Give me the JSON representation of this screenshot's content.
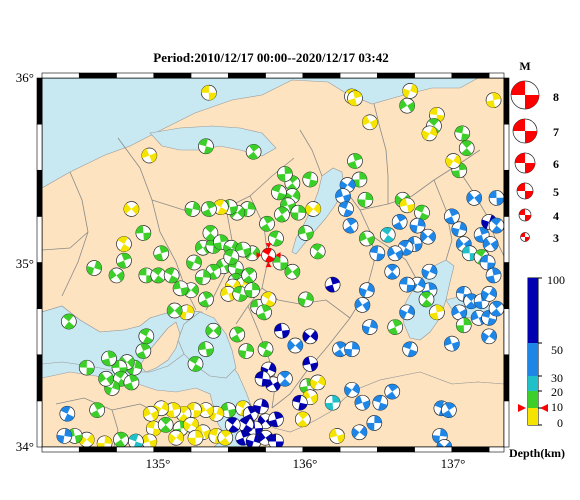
{
  "title": "Period:2010/12/17 00:00--2020/12/17 03:42",
  "axes": {
    "lat_labels": [
      "36°",
      "35°",
      "34°"
    ],
    "lon_labels": [
      "135°",
      "136°",
      "137°"
    ]
  },
  "magnitude_legend": {
    "heading": "M",
    "items": [
      "8",
      "7",
      "6",
      "5",
      "4",
      "3"
    ]
  },
  "depth_scale": {
    "axis_label": "Depth(km)",
    "tick_labels": [
      "100",
      "50",
      "30",
      "20",
      "10",
      "0"
    ],
    "marker_depth_km": 10
  },
  "colors": {
    "sea": "#c8e8f2",
    "land": "#fde3bf",
    "border": "#8a8a8a",
    "depth_0_10": "#f4e400",
    "depth_10_20": "#3ccf2a",
    "depth_20_30": "#20c0c8",
    "depth_30_50": "#1e86e6",
    "depth_50_100": "#0000b0",
    "highlight_event": "#ff0000"
  },
  "highlight_event": {
    "lon": 135.77,
    "lat": 35.04,
    "mag": 4.6,
    "color": "#ff0000"
  },
  "events": [
    {
      "lon": 135.37,
      "lat": 35.92,
      "c": "#f4e400"
    },
    {
      "lon": 136.33,
      "lat": 35.9,
      "c": "#f4e400"
    },
    {
      "lon": 136.35,
      "lat": 35.89,
      "c": "#f4e400"
    },
    {
      "lon": 136.72,
      "lat": 35.93,
      "c": "#f4e400"
    },
    {
      "lon": 136.7,
      "lat": 35.85,
      "c": "#3ccf2a"
    },
    {
      "lon": 136.9,
      "lat": 35.8,
      "c": "#f4e400"
    },
    {
      "lon": 136.88,
      "lat": 35.74,
      "c": "#3ccf2a"
    },
    {
      "lon": 137.28,
      "lat": 35.88,
      "c": "#f4e400"
    },
    {
      "lon": 136.85,
      "lat": 35.7,
      "c": "#f4e400"
    },
    {
      "lon": 136.45,
      "lat": 35.76,
      "c": "#f4e400"
    },
    {
      "lon": 137.07,
      "lat": 35.7,
      "c": "#3ccf2a"
    },
    {
      "lon": 137.1,
      "lat": 35.62,
      "c": "#3ccf2a"
    },
    {
      "lon": 137.05,
      "lat": 35.5,
      "c": "#3ccf2a"
    },
    {
      "lon": 137.01,
      "lat": 35.55,
      "c": "#f4e400"
    },
    {
      "lon": 134.97,
      "lat": 35.58,
      "c": "#f4e400"
    },
    {
      "lon": 135.35,
      "lat": 35.63,
      "c": "#3ccf2a"
    },
    {
      "lon": 135.67,
      "lat": 35.6,
      "c": "#3ccf2a"
    },
    {
      "lon": 136.38,
      "lat": 35.45,
      "c": "#3ccf2a"
    },
    {
      "lon": 136.3,
      "lat": 35.42,
      "c": "#1e86e6"
    },
    {
      "lon": 136.27,
      "lat": 35.36,
      "c": "#1e86e6"
    },
    {
      "lon": 136.29,
      "lat": 35.29,
      "c": "#1e86e6"
    },
    {
      "lon": 136.32,
      "lat": 35.2,
      "c": "#1e86e6"
    },
    {
      "lon": 136.42,
      "lat": 35.34,
      "c": "#3ccf2a"
    },
    {
      "lon": 136.67,
      "lat": 35.34,
      "c": "#3ccf2a"
    },
    {
      "lon": 136.7,
      "lat": 35.31,
      "c": "#f4e400"
    },
    {
      "lon": 136.8,
      "lat": 35.27,
      "c": "#3ccf2a"
    },
    {
      "lon": 136.65,
      "lat": 35.22,
      "c": "#1e86e6"
    },
    {
      "lon": 136.77,
      "lat": 35.2,
      "c": "#1e86e6"
    },
    {
      "lon": 136.84,
      "lat": 35.14,
      "c": "#1e86e6"
    },
    {
      "lon": 136.75,
      "lat": 35.1,
      "c": "#1e86e6"
    },
    {
      "lon": 136.69,
      "lat": 35.08,
      "c": "#1e86e6"
    },
    {
      "lon": 137.0,
      "lat": 35.25,
      "c": "#1e86e6"
    },
    {
      "lon": 137.05,
      "lat": 35.18,
      "c": "#1e86e6"
    },
    {
      "lon": 137.08,
      "lat": 35.1,
      "c": "#1e86e6"
    },
    {
      "lon": 137.12,
      "lat": 35.05,
      "c": "#20c0c8"
    },
    {
      "lon": 137.2,
      "lat": 35.03,
      "c": "#3ccf2a"
    },
    {
      "lon": 137.2,
      "lat": 35.15,
      "c": "#1e86e6"
    },
    {
      "lon": 137.25,
      "lat": 35.22,
      "c": "#0000b0"
    },
    {
      "lon": 137.26,
      "lat": 35.1,
      "c": "#1e86e6"
    },
    {
      "lon": 137.24,
      "lat": 35.0,
      "c": "#1e86e6"
    },
    {
      "lon": 137.3,
      "lat": 35.2,
      "c": "#1e86e6"
    },
    {
      "lon": 137.28,
      "lat": 34.93,
      "c": "#1e86e6"
    },
    {
      "lon": 136.85,
      "lat": 34.95,
      "c": "#1e86e6"
    },
    {
      "lon": 136.62,
      "lat": 35.05,
      "c": "#1e86e6"
    },
    {
      "lon": 136.5,
      "lat": 35.05,
      "c": "#1e86e6"
    },
    {
      "lon": 136.6,
      "lat": 34.95,
      "c": "#1e86e6"
    },
    {
      "lon": 136.85,
      "lat": 34.85,
      "c": "#1e86e6"
    },
    {
      "lon": 136.77,
      "lat": 34.88,
      "c": "#1e86e6"
    },
    {
      "lon": 136.43,
      "lat": 35.13,
      "c": "#3ccf2a"
    },
    {
      "lon": 136.05,
      "lat": 35.45,
      "c": "#3ccf2a"
    },
    {
      "lon": 135.93,
      "lat": 35.43,
      "c": "#3ccf2a"
    },
    {
      "lon": 135.88,
      "lat": 35.48,
      "c": "#3ccf2a"
    },
    {
      "lon": 135.93,
      "lat": 35.36,
      "c": "#3ccf2a"
    },
    {
      "lon": 135.9,
      "lat": 35.31,
      "c": "#3ccf2a"
    },
    {
      "lon": 135.84,
      "lat": 35.38,
      "c": "#3ccf2a"
    },
    {
      "lon": 135.86,
      "lat": 35.26,
      "c": "#3ccf2a"
    },
    {
      "lon": 135.97,
      "lat": 35.27,
      "c": "#3ccf2a"
    },
    {
      "lon": 136.07,
      "lat": 35.29,
      "c": "#f4e400"
    },
    {
      "lon": 136.02,
      "lat": 35.16,
      "c": "#3ccf2a"
    },
    {
      "lon": 135.82,
      "lat": 35.13,
      "c": "#3ccf2a"
    },
    {
      "lon": 135.76,
      "lat": 35.21,
      "c": "#3ccf2a"
    },
    {
      "lon": 135.63,
      "lat": 35.29,
      "c": "#3ccf2a"
    },
    {
      "lon": 135.56,
      "lat": 35.27,
      "c": "#3ccf2a"
    },
    {
      "lon": 135.51,
      "lat": 35.3,
      "c": "#3ccf2a"
    },
    {
      "lon": 135.45,
      "lat": 35.3,
      "c": "#f4e400"
    },
    {
      "lon": 135.37,
      "lat": 35.29,
      "c": "#3ccf2a"
    },
    {
      "lon": 135.26,
      "lat": 35.29,
      "c": "#3ccf2a"
    },
    {
      "lon": 134.85,
      "lat": 35.29,
      "c": "#f4e400"
    },
    {
      "lon": 134.93,
      "lat": 35.16,
      "c": "#3ccf2a"
    },
    {
      "lon": 134.8,
      "lat": 35.1,
      "c": "#f4e400"
    },
    {
      "lon": 134.8,
      "lat": 35.01,
      "c": "#3ccf2a"
    },
    {
      "lon": 134.6,
      "lat": 34.97,
      "c": "#3ccf2a"
    },
    {
      "lon": 134.75,
      "lat": 34.93,
      "c": "#3ccf2a"
    },
    {
      "lon": 134.95,
      "lat": 34.93,
      "c": "#3ccf2a"
    },
    {
      "lon": 135.03,
      "lat": 34.93,
      "c": "#3ccf2a"
    },
    {
      "lon": 135.05,
      "lat": 35.05,
      "c": "#3ccf2a"
    },
    {
      "lon": 135.27,
      "lat": 35.0,
      "c": "#3ccf2a"
    },
    {
      "lon": 135.33,
      "lat": 35.08,
      "c": "#3ccf2a"
    },
    {
      "lon": 135.4,
      "lat": 35.09,
      "c": "#3ccf2a"
    },
    {
      "lon": 135.38,
      "lat": 35.16,
      "c": "#3ccf2a"
    },
    {
      "lon": 135.45,
      "lat": 35.11,
      "c": "#3ccf2a"
    },
    {
      "lon": 135.52,
      "lat": 35.08,
      "c": "#3ccf2a"
    },
    {
      "lon": 135.47,
      "lat": 34.98,
      "c": "#3ccf2a"
    },
    {
      "lon": 135.55,
      "lat": 34.97,
      "c": "#3ccf2a"
    },
    {
      "lon": 135.55,
      "lat": 34.9,
      "c": "#3ccf2a"
    },
    {
      "lon": 135.6,
      "lat": 34.88,
      "c": "#f4e400"
    },
    {
      "lon": 135.53,
      "lat": 34.87,
      "c": "#f4e400"
    },
    {
      "lon": 135.5,
      "lat": 34.83,
      "c": "#f4e400"
    },
    {
      "lon": 135.58,
      "lat": 34.83,
      "c": "#3ccf2a"
    },
    {
      "lon": 135.64,
      "lat": 34.93,
      "c": "#3ccf2a"
    },
    {
      "lon": 135.66,
      "lat": 34.85,
      "c": "#3ccf2a"
    },
    {
      "lon": 135.66,
      "lat": 35.05,
      "c": "#3ccf2a"
    },
    {
      "lon": 135.6,
      "lat": 35.07,
      "c": "#3ccf2a"
    },
    {
      "lon": 135.52,
      "lat": 35.03,
      "c": "#3ccf2a"
    },
    {
      "lon": 135.4,
      "lat": 34.95,
      "c": "#3ccf2a"
    },
    {
      "lon": 135.33,
      "lat": 34.92,
      "c": "#3ccf2a"
    },
    {
      "lon": 135.25,
      "lat": 34.85,
      "c": "#3ccf2a"
    },
    {
      "lon": 135.18,
      "lat": 34.86,
      "c": "#3ccf2a"
    },
    {
      "lon": 135.12,
      "lat": 34.93,
      "c": "#3ccf2a"
    },
    {
      "lon": 135.35,
      "lat": 34.8,
      "c": "#3ccf2a"
    },
    {
      "lon": 135.22,
      "lat": 34.73,
      "c": "#f4e400"
    },
    {
      "lon": 135.14,
      "lat": 34.74,
      "c": "#3ccf2a"
    },
    {
      "lon": 135.7,
      "lat": 34.76,
      "c": "#3ccf2a"
    },
    {
      "lon": 135.77,
      "lat": 34.8,
      "c": "#f4e400"
    },
    {
      "lon": 135.74,
      "lat": 34.73,
      "c": "#3ccf2a"
    },
    {
      "lon": 136.02,
      "lat": 34.8,
      "c": "#3ccf2a"
    },
    {
      "lon": 135.93,
      "lat": 34.95,
      "c": "#3ccf2a"
    },
    {
      "lon": 135.85,
      "lat": 35.0,
      "c": "#3ccf2a"
    },
    {
      "lon": 136.1,
      "lat": 35.06,
      "c": "#3ccf2a"
    },
    {
      "lon": 136.2,
      "lat": 34.88,
      "c": "#0000b0"
    },
    {
      "lon": 136.43,
      "lat": 34.85,
      "c": "#1e86e6"
    },
    {
      "lon": 136.4,
      "lat": 34.77,
      "c": "#1e86e6"
    },
    {
      "lon": 136.7,
      "lat": 34.88,
      "c": "#1e86e6"
    },
    {
      "lon": 136.83,
      "lat": 34.8,
      "c": "#3ccf2a"
    },
    {
      "lon": 136.9,
      "lat": 34.73,
      "c": "#f4e400"
    },
    {
      "lon": 136.7,
      "lat": 34.73,
      "c": "#1e86e6"
    },
    {
      "lon": 137.05,
      "lat": 34.73,
      "c": "#1e86e6"
    },
    {
      "lon": 137.08,
      "lat": 34.83,
      "c": "#1e86e6"
    },
    {
      "lon": 137.13,
      "lat": 34.79,
      "c": "#1e86e6"
    },
    {
      "lon": 137.2,
      "lat": 34.79,
      "c": "#1e86e6"
    },
    {
      "lon": 137.25,
      "lat": 34.83,
      "c": "#1e86e6"
    },
    {
      "lon": 137.18,
      "lat": 34.7,
      "c": "#1e86e6"
    },
    {
      "lon": 137.25,
      "lat": 34.7,
      "c": "#1e86e6"
    },
    {
      "lon": 137.3,
      "lat": 34.75,
      "c": "#1e86e6"
    },
    {
      "lon": 137.08,
      "lat": 34.66,
      "c": "#3ccf2a"
    },
    {
      "lon": 137.25,
      "lat": 34.6,
      "c": "#1e86e6"
    },
    {
      "lon": 137.0,
      "lat": 34.56,
      "c": "#1e86e6"
    },
    {
      "lon": 136.72,
      "lat": 34.53,
      "c": "#1e86e6"
    },
    {
      "lon": 136.25,
      "lat": 34.53,
      "c": "#1e86e6"
    },
    {
      "lon": 136.33,
      "lat": 34.53,
      "c": "#1e86e6"
    },
    {
      "lon": 136.05,
      "lat": 34.6,
      "c": "#0000b0"
    },
    {
      "lon": 136.05,
      "lat": 34.45,
      "c": "#0000b0"
    },
    {
      "lon": 135.75,
      "lat": 34.53,
      "c": "#3ccf2a"
    },
    {
      "lon": 135.56,
      "lat": 34.61,
      "c": "#3ccf2a"
    },
    {
      "lon": 135.62,
      "lat": 34.52,
      "c": "#3ccf2a"
    },
    {
      "lon": 135.4,
      "lat": 34.63,
      "c": "#3ccf2a"
    },
    {
      "lon": 135.35,
      "lat": 34.53,
      "c": "#3ccf2a"
    },
    {
      "lon": 134.95,
      "lat": 34.6,
      "c": "#3ccf2a"
    },
    {
      "lon": 134.93,
      "lat": 34.52,
      "c": "#3ccf2a"
    },
    {
      "lon": 134.87,
      "lat": 34.43,
      "c": "#3ccf2a"
    },
    {
      "lon": 134.82,
      "lat": 34.46,
      "c": "#3ccf2a"
    },
    {
      "lon": 134.77,
      "lat": 34.43,
      "c": "#3ccf2a"
    },
    {
      "lon": 134.78,
      "lat": 34.37,
      "c": "#3ccf2a"
    },
    {
      "lon": 134.85,
      "lat": 34.35,
      "c": "#3ccf2a"
    },
    {
      "lon": 134.72,
      "lat": 34.32,
      "c": "#3ccf2a"
    },
    {
      "lon": 134.68,
      "lat": 34.37,
      "c": "#3ccf2a"
    },
    {
      "lon": 134.55,
      "lat": 34.43,
      "c": "#3ccf2a"
    },
    {
      "lon": 134.43,
      "lat": 34.68,
      "c": "#3ccf2a"
    },
    {
      "lon": 134.7,
      "lat": 34.48,
      "c": "#3ccf2a"
    },
    {
      "lon": 135.77,
      "lat": 34.42,
      "c": "#0000b0"
    },
    {
      "lon": 135.8,
      "lat": 34.34,
      "c": "#0000b0"
    },
    {
      "lon": 135.73,
      "lat": 34.37,
      "c": "#0000b0"
    },
    {
      "lon": 135.88,
      "lat": 34.37,
      "c": "#1e86e6"
    },
    {
      "lon": 136.03,
      "lat": 34.33,
      "c": "#3ccf2a"
    },
    {
      "lon": 136.1,
      "lat": 34.35,
      "c": "#f4e400"
    },
    {
      "lon": 136.05,
      "lat": 34.27,
      "c": "#f4e400"
    },
    {
      "lon": 135.98,
      "lat": 34.24,
      "c": "#0000b0"
    },
    {
      "lon": 136.0,
      "lat": 34.15,
      "c": "#f4e400"
    },
    {
      "lon": 136.2,
      "lat": 34.24,
      "c": "#20c0c8"
    },
    {
      "lon": 136.33,
      "lat": 34.31,
      "c": "#1e86e6"
    },
    {
      "lon": 136.4,
      "lat": 34.24,
      "c": "#1e86e6"
    },
    {
      "lon": 136.52,
      "lat": 34.24,
      "c": "#1e86e6"
    },
    {
      "lon": 136.6,
      "lat": 34.3,
      "c": "#1e86e6"
    },
    {
      "lon": 136.48,
      "lat": 34.13,
      "c": "#1e86e6"
    },
    {
      "lon": 136.38,
      "lat": 34.08,
      "c": "#1e86e6"
    },
    {
      "lon": 136.23,
      "lat": 34.06,
      "c": "#f4e400"
    },
    {
      "lon": 136.93,
      "lat": 34.21,
      "c": "#1e86e6"
    },
    {
      "lon": 136.98,
      "lat": 34.2,
      "c": "#1e86e6"
    },
    {
      "lon": 136.92,
      "lat": 34.06,
      "c": "#1e86e6"
    },
    {
      "lon": 136.95,
      "lat": 34.0,
      "c": "#1e86e6"
    },
    {
      "lon": 135.5,
      "lat": 34.2,
      "c": "#3ccf2a"
    },
    {
      "lon": 135.6,
      "lat": 34.21,
      "c": "#f4e400"
    },
    {
      "lon": 135.65,
      "lat": 34.18,
      "c": "#0000b0"
    },
    {
      "lon": 135.72,
      "lat": 34.22,
      "c": "#0000b0"
    },
    {
      "lon": 135.75,
      "lat": 34.14,
      "c": "#0000b0"
    },
    {
      "lon": 135.68,
      "lat": 34.1,
      "c": "#0000b0"
    },
    {
      "lon": 135.62,
      "lat": 34.12,
      "c": "#0000b0"
    },
    {
      "lon": 135.6,
      "lat": 34.05,
      "c": "#0000b0"
    },
    {
      "lon": 135.67,
      "lat": 34.03,
      "c": "#0000b0"
    },
    {
      "lon": 135.75,
      "lat": 34.05,
      "c": "#0000b0"
    },
    {
      "lon": 135.82,
      "lat": 34.03,
      "c": "#0000b0"
    },
    {
      "lon": 135.53,
      "lat": 34.12,
      "c": "#0000b0"
    },
    {
      "lon": 135.82,
      "lat": 34.15,
      "c": "#0000b0"
    },
    {
      "lon": 135.42,
      "lat": 34.18,
      "c": "#f4e400"
    },
    {
      "lon": 135.35,
      "lat": 34.2,
      "c": "#f4e400"
    },
    {
      "lon": 135.27,
      "lat": 34.2,
      "c": "#f4e400"
    },
    {
      "lon": 135.2,
      "lat": 34.18,
      "c": "#f4e400"
    },
    {
      "lon": 135.13,
      "lat": 34.2,
      "c": "#f4e400"
    },
    {
      "lon": 135.05,
      "lat": 34.21,
      "c": "#f4e400"
    },
    {
      "lon": 134.98,
      "lat": 34.18,
      "c": "#f4e400"
    },
    {
      "lon": 135.0,
      "lat": 34.1,
      "c": "#f4e400"
    },
    {
      "lon": 135.08,
      "lat": 34.12,
      "c": "#3ccf2a"
    },
    {
      "lon": 135.18,
      "lat": 34.1,
      "c": "#3ccf2a"
    },
    {
      "lon": 135.25,
      "lat": 34.12,
      "c": "#f4e400"
    },
    {
      "lon": 135.33,
      "lat": 34.08,
      "c": "#f4e400"
    },
    {
      "lon": 135.42,
      "lat": 34.06,
      "c": "#f4e400"
    },
    {
      "lon": 135.48,
      "lat": 34.05,
      "c": "#f4e400"
    },
    {
      "lon": 135.28,
      "lat": 34.05,
      "c": "#f4e400"
    },
    {
      "lon": 135.15,
      "lat": 34.05,
      "c": "#f4e400"
    },
    {
      "lon": 134.97,
      "lat": 34.03,
      "c": "#f4e400"
    },
    {
      "lon": 134.88,
      "lat": 34.03,
      "c": "#20c0c8"
    },
    {
      "lon": 134.78,
      "lat": 34.04,
      "c": "#3ccf2a"
    },
    {
      "lon": 134.67,
      "lat": 34.02,
      "c": "#f4e400"
    },
    {
      "lon": 134.55,
      "lat": 34.04,
      "c": "#f4e400"
    },
    {
      "lon": 134.47,
      "lat": 34.06,
      "c": "#3ccf2a"
    },
    {
      "lon": 134.42,
      "lat": 34.18,
      "c": "#1e86e6"
    },
    {
      "lon": 134.62,
      "lat": 34.2,
      "c": "#3ccf2a"
    },
    {
      "lon": 134.4,
      "lat": 34.06,
      "c": "#1e86e6"
    },
    {
      "lon": 135.95,
      "lat": 34.55,
      "c": "#1e86e6"
    },
    {
      "lon": 135.86,
      "lat": 34.63,
      "c": "#0000b0"
    },
    {
      "lon": 135.28,
      "lat": 34.45,
      "c": "#3ccf2a"
    },
    {
      "lon": 136.62,
      "lat": 34.65,
      "c": "#3ccf2a"
    },
    {
      "lon": 136.45,
      "lat": 34.65,
      "c": "#1e86e6"
    },
    {
      "lon": 137.15,
      "lat": 35.35,
      "c": "#1e86e6"
    },
    {
      "lon": 137.3,
      "lat": 35.35,
      "c": "#1e86e6"
    },
    {
      "lon": 136.57,
      "lat": 35.15,
      "c": "#20c0c8"
    },
    {
      "lon": 136.35,
      "lat": 35.55,
      "c": "#3ccf2a"
    }
  ]
}
